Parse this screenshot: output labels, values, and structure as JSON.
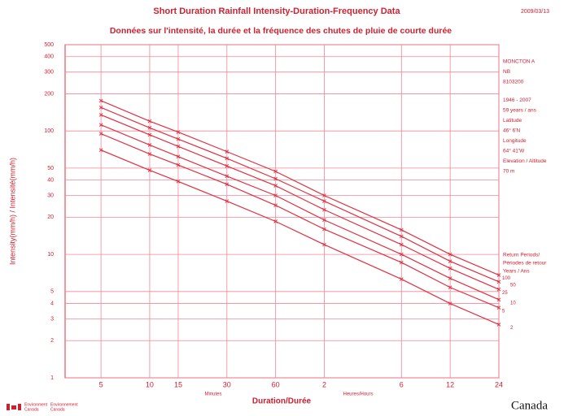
{
  "chart_data": {
    "type": "line",
    "title": "Short Duration Rainfall Intensity-Duration-Frequency Data",
    "date": "2009/03/13",
    "subtitle": "Données sur l'intensité, la durée et la fréquence des chutes de pluie de courte durée",
    "y_label": "Intensity(mm/h) / Intensité(mm/h)",
    "x_label": "Duration/Durée",
    "x_unit_minutes": "Minutes",
    "x_unit_hours": "Heures/Hours",
    "log_x": true,
    "log_y": true,
    "grid": true,
    "color": "#e03040",
    "x": [
      5,
      10,
      15,
      30,
      60,
      120,
      360,
      720,
      1440
    ],
    "xlim": [
      3,
      1440
    ],
    "xticks": [
      5,
      10,
      15,
      30,
      60,
      {
        "value": 120,
        "label": "2"
      },
      {
        "value": 360,
        "label": "6"
      },
      {
        "value": 720,
        "label": "12"
      },
      {
        "value": 1440,
        "label": "24"
      }
    ],
    "ylim": [
      1,
      500
    ],
    "yticks": [
      1,
      2,
      3,
      4,
      5,
      10,
      20,
      30,
      40,
      50,
      100,
      200,
      300,
      400,
      500
    ],
    "series": [
      {
        "name": "100",
        "color": "#e03040",
        "values": [
          176,
          120,
          98,
          68,
          47,
          30,
          15.8,
          10,
          6.8
        ]
      },
      {
        "name": "50",
        "color": "#e03040",
        "values": [
          155,
          106,
          86,
          60,
          41,
          27,
          14,
          8.8,
          6
        ]
      },
      {
        "name": "25",
        "color": "#e03040",
        "values": [
          135,
          93,
          75,
          52,
          36,
          23,
          12,
          7.7,
          5.2
        ]
      },
      {
        "name": "10",
        "color": "#e03040",
        "values": [
          112,
          77,
          62,
          43,
          30,
          19,
          10,
          6.4,
          4.3
        ]
      },
      {
        "name": "5",
        "color": "#e03040",
        "values": [
          95,
          65,
          53,
          37,
          25,
          16,
          8.6,
          5.4,
          3.7
        ]
      },
      {
        "name": "2",
        "color": "#e03040",
        "values": [
          70,
          48,
          39,
          27,
          18.5,
          12,
          6.3,
          4,
          2.7
        ]
      }
    ],
    "station": [
      "MONCTON A",
      "NB",
      "8103200",
      "1946 - 2007",
      "59 years / ans",
      "Latitude",
      "46° 6'N",
      "Longitude",
      "64° 41'W",
      "Elevation / Altitude",
      "70 m"
    ],
    "return_period_title": [
      "Return Periods/",
      "Périodes de retour",
      "Years / Ans"
    ],
    "footer": {
      "department": [
        "Environment",
        "Canada"
      ],
      "department_fr": [
        "Environnement",
        "Canada"
      ],
      "wordmark": "Canada"
    }
  }
}
